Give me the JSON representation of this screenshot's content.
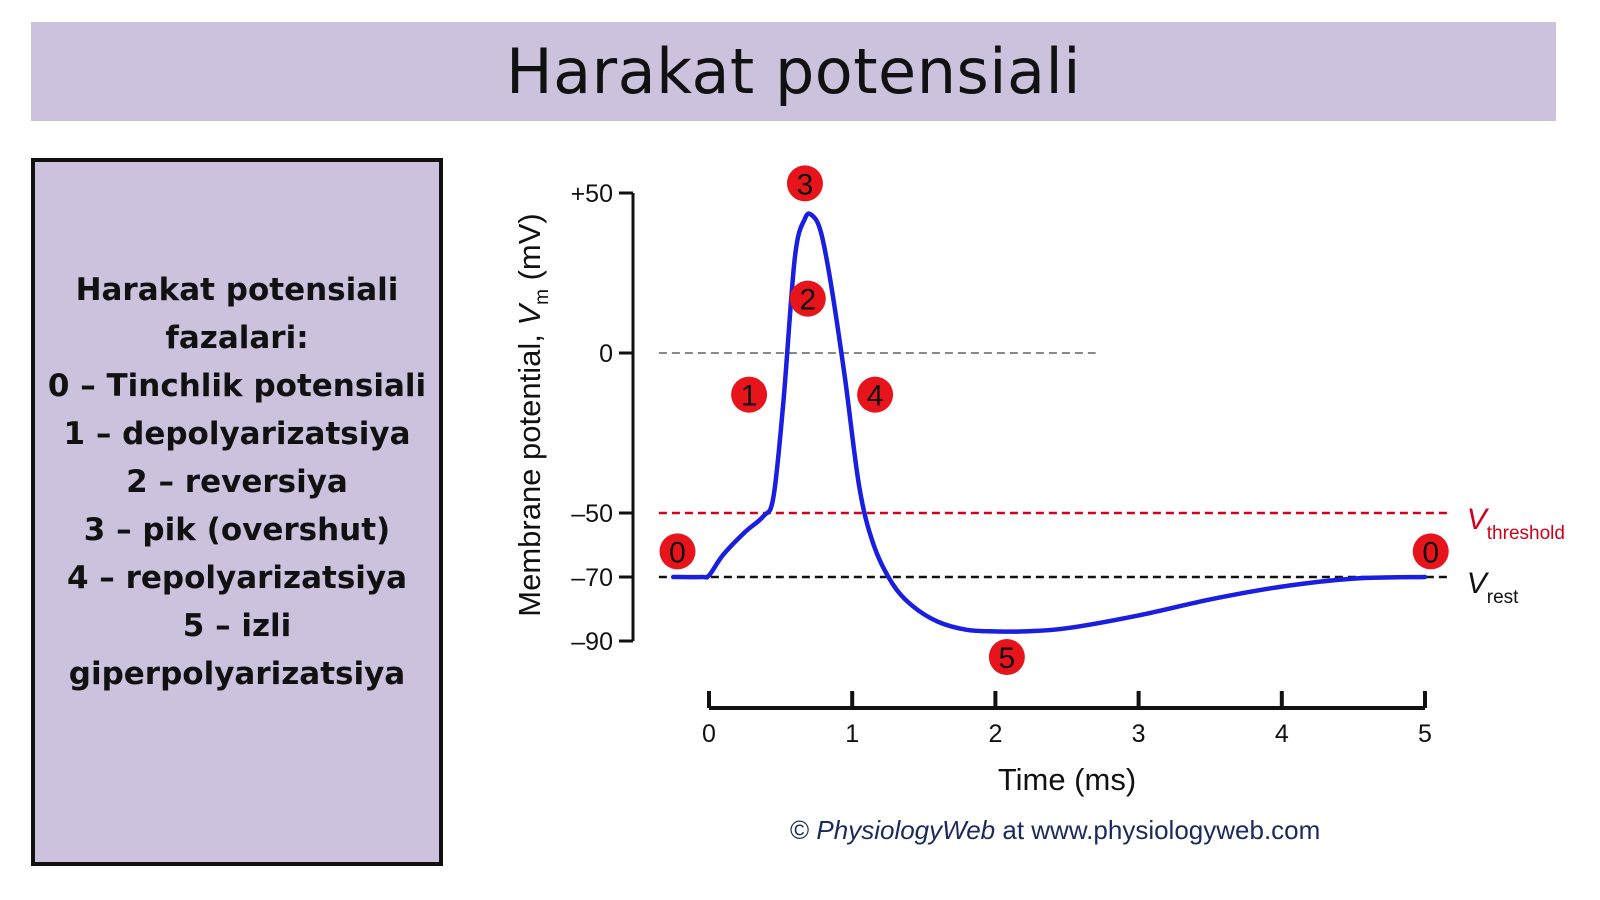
{
  "title": "Harakat potensiali",
  "phases_box": {
    "heading_line1": "Harakat potensiali",
    "heading_line2": "fazalari:",
    "items": [
      "0 – Tinchlik potensiali",
      "1 –  depolyarizatsiya",
      "2 – reversiya",
      "3 – pik (overshut)",
      "4 –  repolyarizatsiya",
      "5 – izli",
      "giperpolyarizatsiya"
    ]
  },
  "chart_data": {
    "type": "line",
    "xlabel": "Time (ms)",
    "ylabel_main": "Membrane potential,",
    "ylabel_var": "V",
    "ylabel_sub": "m",
    "ylabel_unit": "(mV)",
    "x_ticks": [
      0,
      1,
      2,
      3,
      4,
      5
    ],
    "y_ticks": [
      {
        "value": 50,
        "label": "+50"
      },
      {
        "value": 0,
        "label": "0"
      },
      {
        "value": -50,
        "label": "–50"
      },
      {
        "value": -70,
        "label": "–70"
      },
      {
        "value": -90,
        "label": "–90"
      }
    ],
    "xlim": [
      -0.25,
      5
    ],
    "ylim": [
      -90,
      50
    ],
    "series": [
      {
        "color": "#1a1ee0",
        "x": [
          -0.25,
          -0.05,
          0.0,
          0.1,
          0.25,
          0.38,
          0.45,
          0.52,
          0.6,
          0.67,
          0.72,
          0.78,
          0.85,
          0.95,
          1.05,
          1.15,
          1.28,
          1.42,
          1.6,
          1.8,
          2.0,
          2.2,
          2.5,
          3.0,
          3.5,
          4.0,
          4.5,
          5.0
        ],
        "y": [
          -70,
          -70,
          -69.5,
          -63,
          -56,
          -51,
          -45,
          -15,
          30,
          42,
          43,
          38,
          22,
          -8,
          -42,
          -60,
          -72,
          -79,
          -84,
          -86.5,
          -87,
          -87,
          -86,
          -82,
          -77,
          -73,
          -70.5,
          -70
        ]
      }
    ],
    "reference_lines": [
      {
        "name": "zero",
        "y": 0,
        "x_end": 2.7,
        "color": "#888888"
      },
      {
        "name": "threshold",
        "y": -50,
        "x_end": 5.18,
        "color": "#d0021b",
        "label_var": "V",
        "label_sub": "threshold"
      },
      {
        "name": "rest",
        "y": -70,
        "x_end": 5.18,
        "color": "#111111",
        "label_var": "V",
        "label_sub": "rest"
      }
    ],
    "phase_markers": [
      {
        "label": "0",
        "x": -0.22,
        "y": -62
      },
      {
        "label": "1",
        "x": 0.28,
        "y": -13
      },
      {
        "label": "2",
        "x": 0.69,
        "y": 17
      },
      {
        "label": "3",
        "x": 0.67,
        "y": 53
      },
      {
        "label": "4",
        "x": 1.16,
        "y": -13
      },
      {
        "label": "5",
        "x": 2.08,
        "y": -95
      },
      {
        "label": "0",
        "x": 5.04,
        "y": -62
      }
    ]
  },
  "credit": {
    "symbol": "©",
    "brand": "PhysiologyWeb",
    "rest": "at www.physiologyweb.com"
  }
}
